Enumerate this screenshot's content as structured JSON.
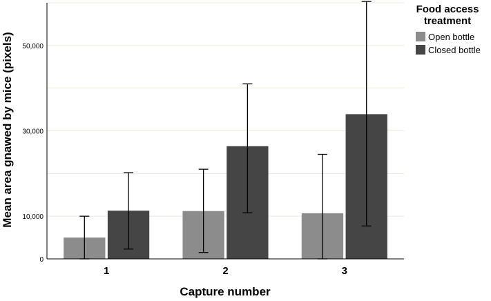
{
  "chart_data": {
    "type": "bar",
    "title": "",
    "xlabel": "Capture number",
    "ylabel": "Mean area gnawed by mice (pixels)",
    "categories": [
      "1",
      "2",
      "3"
    ],
    "ylim": [
      0,
      60000
    ],
    "y_ticks": [
      0,
      10000,
      30000,
      50000
    ],
    "y_tick_labels": [
      "0",
      "10,000",
      "30,000",
      "50,000"
    ],
    "gridlines": [
      10000,
      20000,
      30000,
      40000,
      50000,
      60000
    ],
    "grid": true,
    "legend_title": "Food access treatment",
    "legend_position": "top-right",
    "series": [
      {
        "name": "Open bottle",
        "color": "#8c8c8c",
        "values": [
          5000,
          11200,
          10700
        ],
        "error_low": [
          0,
          1500,
          0
        ],
        "error_high": [
          10000,
          21000,
          24500
        ]
      },
      {
        "name": "Closed bottle",
        "color": "#454545",
        "values": [
          11300,
          26400,
          33900
        ],
        "error_low": [
          2300,
          10800,
          7700
        ],
        "error_high": [
          20200,
          41000,
          60300
        ]
      }
    ]
  }
}
